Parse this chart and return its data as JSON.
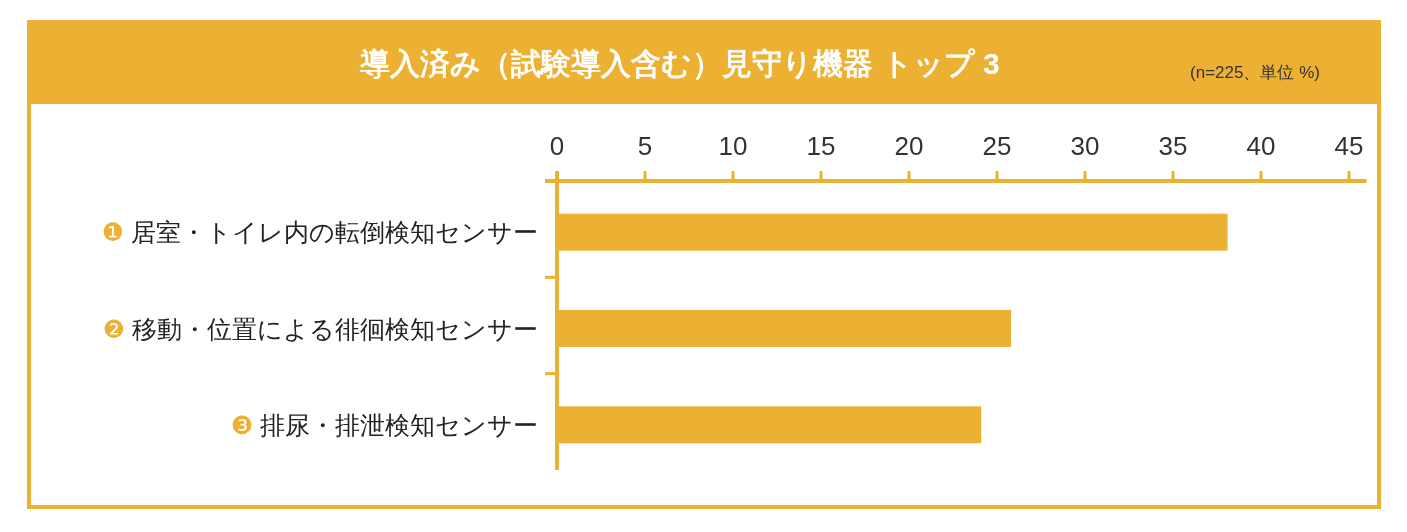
{
  "chart_data": {
    "type": "bar",
    "orientation": "horizontal",
    "title": "導入済み（試験導入含む）見守り機器 トップ 3",
    "subtitle": "(n=225、単位 %)",
    "categories": [
      "❶ 居室・トイレ内の転倒検知センサー",
      "❷ 移動・位置による徘徊検知センサー",
      "❸ 排尿・排泄検知センサー"
    ],
    "values": [
      38.1,
      25.8,
      24.1
    ],
    "color": "#ecb033",
    "xlim": [
      0,
      46
    ],
    "xticks": [
      0,
      5,
      10,
      15,
      20,
      25,
      30,
      35,
      40,
      45
    ],
    "grid": false
  }
}
